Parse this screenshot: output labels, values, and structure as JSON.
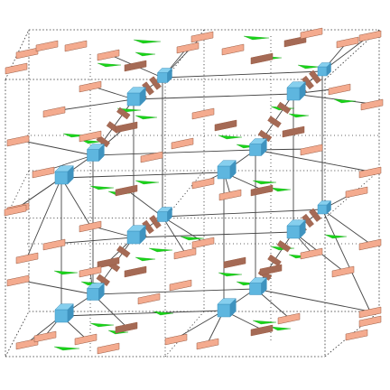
{
  "figure": {
    "kind": "3d-framework-structure",
    "colors": {
      "background": "#ffffff",
      "cell_edge": "#333333",
      "bond": "#444444",
      "node_light": "#86cfee",
      "node_mid": "#5eb6df",
      "node_dark": "#3f93bf",
      "linker_light": "#f4ab8f",
      "linker_dark": "#a56a55",
      "linker_edge": "#9a5c44",
      "spike": "#19d419"
    },
    "legend": []
  }
}
